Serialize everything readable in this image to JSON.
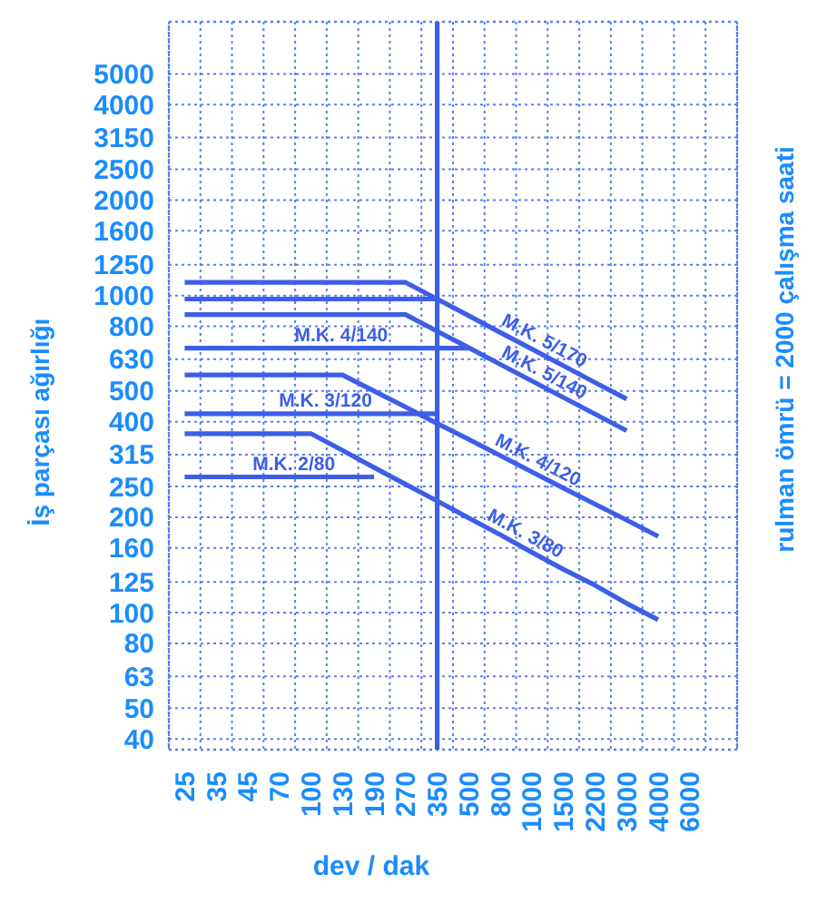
{
  "chart_data": {
    "type": "line",
    "xlabel": "dev / dak",
    "ylabel": "İş parçası ağırlığı",
    "y2label": "rulman ömrü = 2000 çalışma saati",
    "categories": [
      "25",
      "35",
      "45",
      "70",
      "100",
      "130",
      "190",
      "270",
      "350",
      "500",
      "800",
      "1000",
      "1500",
      "2200",
      "3000",
      "4000",
      "6000"
    ],
    "log": "y",
    "ylim": [
      37,
      7300
    ],
    "yticks": [
      40,
      50,
      63,
      80,
      100,
      125,
      160,
      200,
      250,
      315,
      400,
      500,
      630,
      800,
      1000,
      1250,
      1600,
      2000,
      2500,
      3150,
      4000,
      5000
    ],
    "grid": true,
    "legend": false,
    "marker": "none",
    "line_style": "solid",
    "ref_lines": [
      {
        "axis": "x",
        "value": "350",
        "color": "#3d5ee6"
      }
    ],
    "series": [
      {
        "name": "M.K. 5/170",
        "color": "#3d5ee6",
        "values": [
          1100,
          1100,
          1100,
          1100,
          1100,
          1100,
          1100,
          1100,
          975,
          864,
          765,
          678,
          601,
          532,
          472,
          null,
          null
        ]
      },
      {
        "color": "#3d5ee6",
        "values": [
          975,
          975,
          975,
          975,
          975,
          975,
          975,
          975,
          975,
          null,
          null,
          null,
          null,
          null,
          null,
          null,
          null
        ]
      },
      {
        "name": "M.K. 5/140",
        "color": "#3d5ee6",
        "values": [
          871,
          871,
          871,
          871,
          871,
          871,
          871,
          871,
          772,
          685,
          607,
          538,
          477,
          423,
          375,
          null,
          null
        ]
      },
      {
        "name": "M.K. 4/140",
        "color": "#3d5ee6",
        "values": [
          683,
          683,
          683,
          683,
          683,
          683,
          683,
          683,
          683,
          683,
          null,
          null,
          null,
          null,
          null,
          null,
          null
        ]
      },
      {
        "name": "M.K. 4/120",
        "color": "#3d5ee6",
        "values": [
          562,
          562,
          562,
          562,
          562,
          562,
          500,
          445,
          395,
          352,
          313,
          278,
          247,
          220,
          196,
          174,
          null
        ]
      },
      {
        "name": "M.K. 3/120",
        "color": "#3d5ee6",
        "values": [
          424,
          424,
          424,
          424,
          424,
          424,
          424,
          424,
          424,
          null,
          null,
          null,
          null,
          null,
          null,
          null,
          null
        ]
      },
      {
        "name": "M.K. 3/80",
        "color": "#3d5ee6",
        "values": [
          367,
          367,
          367,
          367,
          367,
          325,
          287,
          254,
          225,
          199,
          176,
          155,
          137,
          122,
          107,
          95,
          null
        ]
      },
      {
        "name": "M.K. 2/80",
        "color": "#3d5ee6",
        "values": [
          268,
          268,
          268,
          268,
          268,
          268,
          268,
          null,
          null,
          null,
          null,
          null,
          null,
          null,
          null,
          null,
          null
        ]
      }
    ]
  }
}
